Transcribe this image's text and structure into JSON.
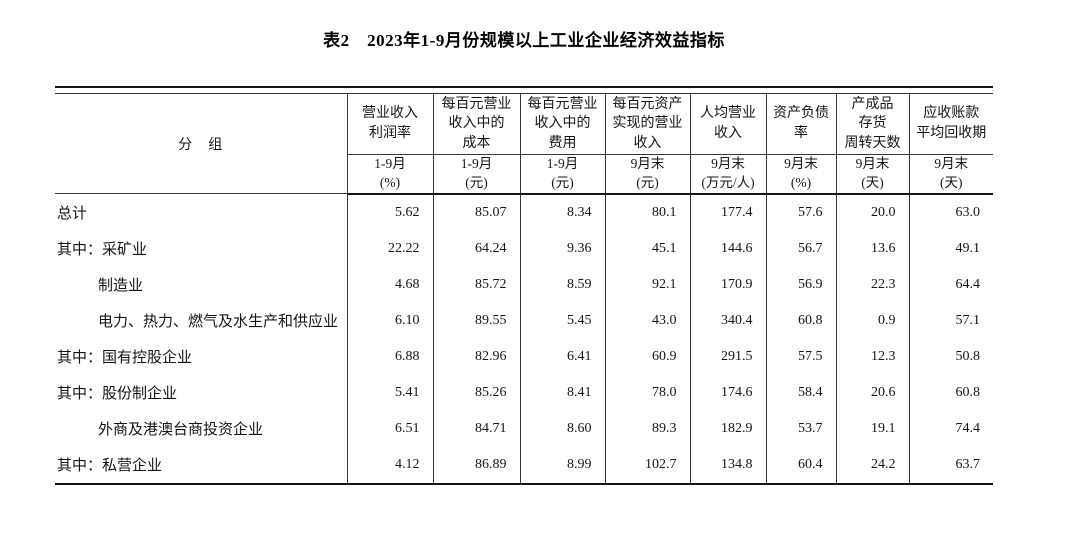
{
  "page": {
    "title": "表2　2023年1-9月份规模以上工业企业经济效益指标"
  },
  "table": {
    "group_header": "分　组",
    "columns": [
      {
        "title": "营业收入\n利润率",
        "period": "1-9月",
        "unit": "(%)"
      },
      {
        "title": "每百元营业\n收入中的\n成本",
        "period": "1-9月",
        "unit": "(元)"
      },
      {
        "title": "每百元营业\n收入中的\n费用",
        "period": "1-9月",
        "unit": "(元)"
      },
      {
        "title": "每百元资产\n实现的营业\n收入",
        "period": "9月末",
        "unit": "(元)"
      },
      {
        "title": "人均营业\n收入",
        "period": "9月末",
        "unit": "(万元/人)"
      },
      {
        "title": "资产负债\n率",
        "period": "9月末",
        "unit": "(%)"
      },
      {
        "title": "产成品\n存货\n周转天数",
        "period": "9月末",
        "unit": "(天)"
      },
      {
        "title": "应收账款\n平均回收期",
        "period": "9月末",
        "unit": "(天)"
      }
    ],
    "rows": [
      {
        "label": "总计",
        "indent": 0,
        "values": [
          "5.62",
          "85.07",
          "8.34",
          "80.1",
          "177.4",
          "57.6",
          "20.0",
          "63.0"
        ]
      },
      {
        "label": "其中：采矿业",
        "indent": 0,
        "values": [
          "22.22",
          "64.24",
          "9.36",
          "45.1",
          "144.6",
          "56.7",
          "13.6",
          "49.1"
        ]
      },
      {
        "label": "制造业",
        "indent": 1,
        "values": [
          "4.68",
          "85.72",
          "8.59",
          "92.1",
          "170.9",
          "56.9",
          "22.3",
          "64.4"
        ]
      },
      {
        "label": "电力、热力、燃气及水生产和供应业",
        "indent": 1,
        "values": [
          "6.10",
          "89.55",
          "5.45",
          "43.0",
          "340.4",
          "60.8",
          "0.9",
          "57.1"
        ]
      },
      {
        "label": "其中：国有控股企业",
        "indent": 0,
        "values": [
          "6.88",
          "82.96",
          "6.41",
          "60.9",
          "291.5",
          "57.5",
          "12.3",
          "50.8"
        ]
      },
      {
        "label": "其中：股份制企业",
        "indent": 0,
        "values": [
          "5.41",
          "85.26",
          "8.41",
          "78.0",
          "174.6",
          "58.4",
          "20.6",
          "60.8"
        ]
      },
      {
        "label": "外商及港澳台商投资企业",
        "indent": 1,
        "values": [
          "6.51",
          "84.71",
          "8.60",
          "89.3",
          "182.9",
          "53.7",
          "19.1",
          "74.4"
        ]
      },
      {
        "label": "其中：私营企业",
        "indent": 0,
        "values": [
          "4.12",
          "86.89",
          "8.99",
          "102.7",
          "134.8",
          "60.4",
          "24.2",
          "63.7"
        ]
      }
    ]
  }
}
